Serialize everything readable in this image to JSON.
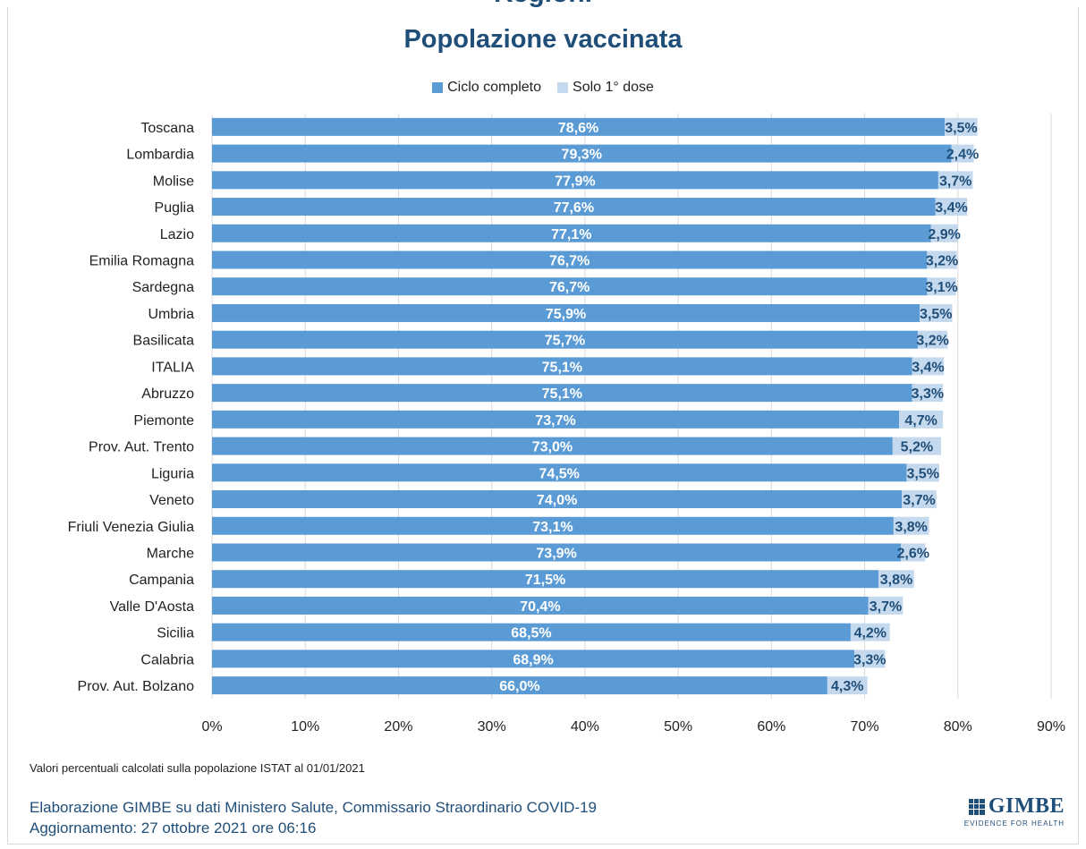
{
  "header": {
    "cut_title": "Regioni",
    "title": "Popolazione vaccinata"
  },
  "legend": {
    "items": [
      {
        "label": "Ciclo completo",
        "color": "#5b9bd5"
      },
      {
        "label": "Solo 1° dose",
        "color": "#c5d9ee"
      }
    ]
  },
  "chart_data": {
    "type": "bar",
    "orientation": "horizontal",
    "stacked": true,
    "title": "Popolazione vaccinata",
    "xlim": [
      0,
      90
    ],
    "xticks": [
      "0%",
      "10%",
      "20%",
      "30%",
      "40%",
      "50%",
      "60%",
      "70%",
      "80%",
      "90%"
    ],
    "grid": true,
    "legend_position": "top",
    "categories": [
      "Toscana",
      "Lombardia",
      "Molise",
      "Puglia",
      "Lazio",
      "Emilia Romagna",
      "Sardegna",
      "Umbria",
      "Basilicata",
      "ITALIA",
      "Abruzzo",
      "Piemonte",
      "Prov. Aut. Trento",
      "Liguria",
      "Veneto",
      "Friuli Venezia Giulia",
      "Marche",
      "Campania",
      "Valle D'Aosta",
      "Sicilia",
      "Calabria",
      "Prov. Aut. Bolzano"
    ],
    "series": [
      {
        "name": "Ciclo completo",
        "color": "#5b9bd5",
        "values": [
          78.6,
          79.3,
          77.9,
          77.6,
          77.1,
          76.7,
          76.7,
          75.9,
          75.7,
          75.1,
          75.1,
          73.7,
          73.0,
          74.5,
          74.0,
          73.1,
          73.9,
          71.5,
          70.4,
          68.5,
          68.9,
          66.0
        ],
        "labels": [
          "78,6%",
          "79,3%",
          "77,9%",
          "77,6%",
          "77,1%",
          "76,7%",
          "76,7%",
          "75,9%",
          "75,7%",
          "75,1%",
          "75,1%",
          "73,7%",
          "73,0%",
          "74,5%",
          "74,0%",
          "73,1%",
          "73,9%",
          "71,5%",
          "70,4%",
          "68,5%",
          "68,9%",
          "66,0%"
        ]
      },
      {
        "name": "Solo 1° dose",
        "color": "#c5d9ee",
        "values": [
          3.5,
          2.4,
          3.7,
          3.4,
          2.9,
          3.2,
          3.1,
          3.5,
          3.2,
          3.4,
          3.3,
          4.7,
          5.2,
          3.5,
          3.7,
          3.8,
          2.6,
          3.8,
          3.7,
          4.2,
          3.3,
          4.3
        ],
        "labels": [
          "3,5%",
          "2,4%",
          "3,7%",
          "3,4%",
          "2,9%",
          "3,2%",
          "3,1%",
          "3,5%",
          "3,2%",
          "3,4%",
          "3,3%",
          "4,7%",
          "5,2%",
          "3,5%",
          "3,7%",
          "3,8%",
          "2,6%",
          "3,8%",
          "3,7%",
          "4,2%",
          "3,3%",
          "4,3%"
        ]
      }
    ]
  },
  "footer": {
    "note": "Valori percentuali calcolati sulla popolazione ISTAT al 01/01/2021",
    "source_line1": "Elaborazione GIMBE su dati Ministero Salute, Commissario Straordinario COVID-19",
    "source_line2": "Aggiornamento: 27 ottobre 2021 ore 06:16",
    "logo_name": "GIMBE",
    "logo_tagline": "EVIDENCE FOR HEALTH"
  }
}
